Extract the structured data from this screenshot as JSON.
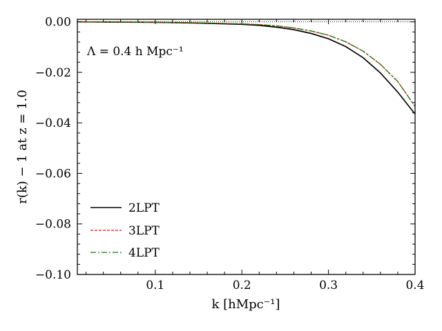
{
  "chart_data": {
    "type": "line",
    "title": "",
    "xlabel": "k [hMpc⁻¹]",
    "ylabel": "r(k) − 1 at z = 1.0",
    "annotation": "Λ = 0.4 h Mpc⁻¹",
    "xlim": [
      0.01,
      0.4
    ],
    "ylim": [
      -0.1,
      0.001
    ],
    "x_ticks": [
      0.1,
      0.2,
      0.3,
      0.4
    ],
    "x_tick_labels": [
      "0.1",
      "0.2",
      "0.3",
      "0.4"
    ],
    "y_ticks": [
      0.0,
      -0.02,
      -0.04,
      -0.06,
      -0.08,
      -0.1
    ],
    "y_tick_labels": [
      "0.00",
      "−0.02",
      "−0.04",
      "−0.06",
      "−0.08",
      "−0.10"
    ],
    "reference_line": {
      "y": 0.0,
      "style": "dotted"
    },
    "legend_position": "lower-left",
    "series": [
      {
        "name": "2LPT",
        "color": "#000000",
        "style": "solid",
        "x": [
          0.01,
          0.05,
          0.1,
          0.15,
          0.2,
          0.22,
          0.24,
          0.26,
          0.28,
          0.3,
          0.32,
          0.34,
          0.36,
          0.38,
          0.4
        ],
        "y": [
          0.0,
          -0.0001,
          -0.0002,
          -0.0005,
          -0.001,
          -0.0014,
          -0.0021,
          -0.0031,
          -0.0046,
          -0.0067,
          -0.0098,
          -0.0142,
          -0.0202,
          -0.0278,
          -0.0365
        ]
      },
      {
        "name": "3LPT",
        "color": "#ff0000",
        "style": "dashed",
        "x": [
          0.01,
          0.05,
          0.1,
          0.15,
          0.2,
          0.22,
          0.24,
          0.26,
          0.28,
          0.3,
          0.32,
          0.34,
          0.36,
          0.38,
          0.4
        ],
        "y": [
          0.0,
          -0.0001,
          -0.0002,
          -0.0004,
          -0.0008,
          -0.0011,
          -0.0016,
          -0.0024,
          -0.0036,
          -0.0053,
          -0.0079,
          -0.0116,
          -0.0168,
          -0.0236,
          -0.0335
        ]
      },
      {
        "name": "4LPT",
        "color": "#008000",
        "style": "dashdot",
        "x": [
          0.01,
          0.05,
          0.1,
          0.15,
          0.2,
          0.22,
          0.24,
          0.26,
          0.28,
          0.3,
          0.32,
          0.34,
          0.36,
          0.38,
          0.4
        ],
        "y": [
          0.0,
          -0.0001,
          -0.0002,
          -0.0004,
          -0.0008,
          -0.0011,
          -0.0016,
          -0.0024,
          -0.0036,
          -0.0053,
          -0.0079,
          -0.0116,
          -0.0168,
          -0.0236,
          -0.0335
        ]
      }
    ]
  }
}
